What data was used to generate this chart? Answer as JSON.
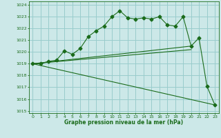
{
  "title": "",
  "xlabel": "Graphe pression niveau de la mer (hPa)",
  "bg_color": "#cce8e8",
  "grid_color": "#99cccc",
  "line_color": "#1a6b1a",
  "ylim": [
    1014.8,
    1024.3
  ],
  "xlim": [
    -0.5,
    23.5
  ],
  "yticks": [
    1015,
    1016,
    1017,
    1018,
    1019,
    1020,
    1021,
    1022,
    1023,
    1024
  ],
  "xticks": [
    0,
    1,
    2,
    3,
    4,
    5,
    6,
    7,
    8,
    9,
    10,
    11,
    12,
    13,
    14,
    15,
    16,
    17,
    18,
    19,
    20,
    21,
    22,
    23
  ],
  "series": [
    {
      "x": [
        0,
        1,
        2,
        3,
        4,
        5,
        6,
        7,
        8,
        9,
        10,
        11,
        12,
        13,
        14,
        15,
        16,
        17,
        18,
        19,
        20,
        21,
        22,
        23
      ],
      "y": [
        1019.0,
        1019.0,
        1019.2,
        1019.3,
        1020.1,
        1019.8,
        1020.3,
        1021.3,
        1021.8,
        1022.2,
        1023.0,
        1023.5,
        1022.9,
        1022.8,
        1022.9,
        1022.8,
        1023.0,
        1022.3,
        1022.2,
        1023.0,
        1020.5,
        1021.2,
        1017.1,
        1015.5
      ],
      "marker": "D",
      "markersize": 2.5
    },
    {
      "x": [
        0,
        23
      ],
      "y": [
        1019.0,
        1015.5
      ],
      "marker": null,
      "markersize": 0
    },
    {
      "x": [
        0,
        20
      ],
      "y": [
        1019.0,
        1020.5
      ],
      "marker": null,
      "markersize": 0
    },
    {
      "x": [
        0,
        20
      ],
      "y": [
        1019.0,
        1020.2
      ],
      "marker": null,
      "markersize": 0
    }
  ]
}
